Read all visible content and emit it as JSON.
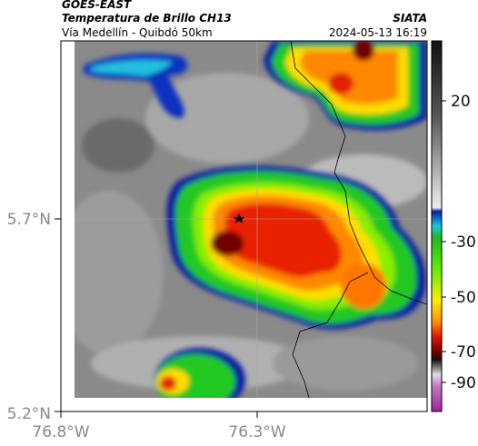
{
  "header": {
    "satellite": "GOES-EAST",
    "product": "Temperatura de Brillo CH13",
    "route": "Vía Medellín - Quibdó 50km",
    "source": "SIATA",
    "datetime": "2024-05-13 16:19"
  },
  "axes": {
    "lat_labels": [
      "5.7°N",
      "5.2°N"
    ],
    "lon_labels": [
      "76.8°W",
      "76.3°W"
    ]
  },
  "colorbar": {
    "ticks": [
      "20",
      "-30",
      "-50",
      "-70",
      "-90"
    ]
  }
}
